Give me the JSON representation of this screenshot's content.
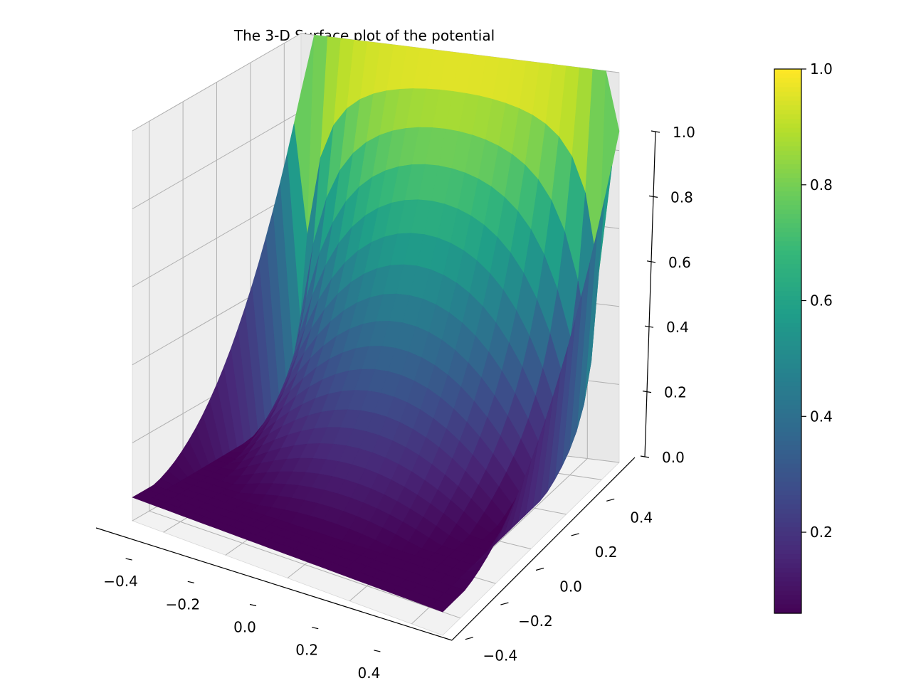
{
  "chart_data": {
    "type": "surface",
    "title": "The 3-D Surface plot of the potential",
    "xlabel": "",
    "ylabel": "",
    "zlabel": "",
    "x_range": [
      -0.5,
      0.5
    ],
    "y_range": [
      -0.5,
      0.5
    ],
    "z_range": [
      0.0,
      1.0
    ],
    "x_ticks": [
      -0.4,
      -0.2,
      0.0,
      0.2,
      0.4
    ],
    "y_ticks": [
      -0.4,
      -0.2,
      0.0,
      0.2,
      0.4
    ],
    "z_ticks": [
      0.0,
      0.2,
      0.4,
      0.6,
      0.8,
      1.0
    ],
    "x_tick_labels": [
      "−0.4",
      "−0.2",
      "0.0",
      "0.2",
      "0.4"
    ],
    "y_tick_labels": [
      "−0.4",
      "−0.2",
      "0.0",
      "0.2",
      "0.4"
    ],
    "z_tick_labels": [
      "0.0",
      "0.2",
      "0.4",
      "0.6",
      "0.8",
      "1.0"
    ],
    "grid_n": 25,
    "boundary_value_at_y_max": 1.0,
    "colormap": "viridis",
    "colorbar": {
      "range": [
        0.06,
        1.0
      ],
      "ticks": [
        0.2,
        0.4,
        0.6,
        0.8,
        1.0
      ],
      "tick_labels": [
        "0.2",
        "0.4",
        "0.6",
        "0.8",
        "1.0"
      ],
      "placement": "right"
    },
    "grid": true
  }
}
